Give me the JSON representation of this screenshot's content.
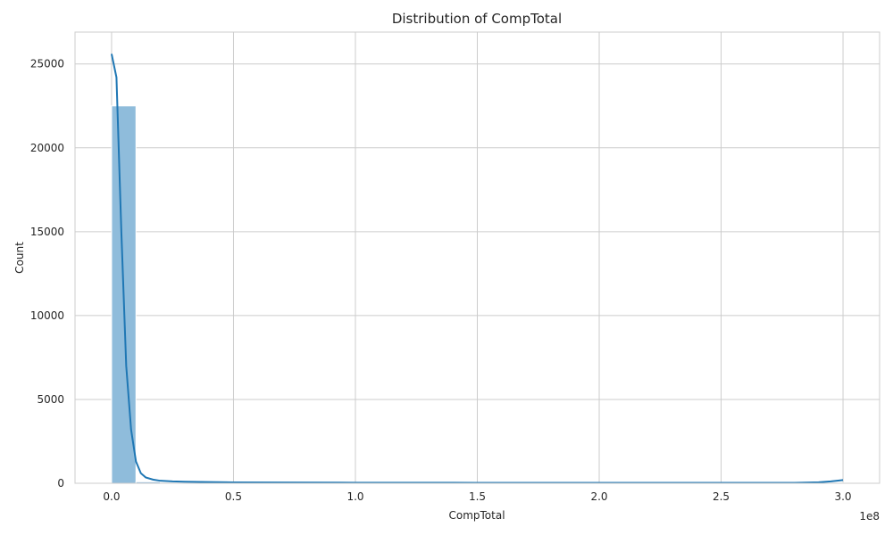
{
  "chart_data": {
    "type": "bar",
    "title": "Distribution of CompTotal",
    "xlabel": "CompTotal",
    "ylabel": "Count",
    "x_offset_label": "1e8",
    "xlim": [
      -15000000,
      315000000
    ],
    "ylim": [
      0,
      26900
    ],
    "x_ticks": [
      0,
      50000000,
      100000000,
      150000000,
      200000000,
      250000000,
      300000000
    ],
    "x_tick_labels": [
      "0.0",
      "0.5",
      "1.0",
      "1.5",
      "2.0",
      "2.5",
      "3.0"
    ],
    "y_ticks": [
      0,
      5000,
      10000,
      15000,
      20000,
      25000
    ],
    "y_tick_labels": [
      "0",
      "5000",
      "10000",
      "15000",
      "20000",
      "25000"
    ],
    "bins": {
      "start": 0,
      "width": 10000000,
      "counts": [
        22500,
        90,
        30,
        15,
        10,
        6,
        5,
        4,
        3,
        2,
        2,
        2,
        1,
        1,
        1,
        1,
        1,
        1,
        1,
        1,
        1,
        1,
        1,
        1,
        1,
        1,
        1,
        1,
        1,
        30
      ]
    },
    "kde": {
      "x": [
        0,
        2000000,
        4000000,
        6000000,
        8000000,
        10000000,
        12000000,
        14000000,
        17000000,
        20000000,
        25000000,
        30000000,
        40000000,
        50000000,
        70000000,
        100000000,
        150000000,
        200000000,
        250000000,
        280000000,
        290000000,
        295000000,
        298000000,
        300000000
      ],
      "y": [
        25600,
        24200,
        15000,
        7000,
        3200,
        1300,
        600,
        350,
        220,
        150,
        110,
        90,
        70,
        55,
        45,
        35,
        30,
        25,
        25,
        30,
        60,
        110,
        160,
        190
      ]
    },
    "grid": true,
    "legend": "none",
    "colors": {
      "bar_fill": "#8fbcdb",
      "bar_edge": "#ffffff",
      "kde_line": "#1f77b4",
      "grid": "#cccccc",
      "background": "#ffffff"
    }
  }
}
